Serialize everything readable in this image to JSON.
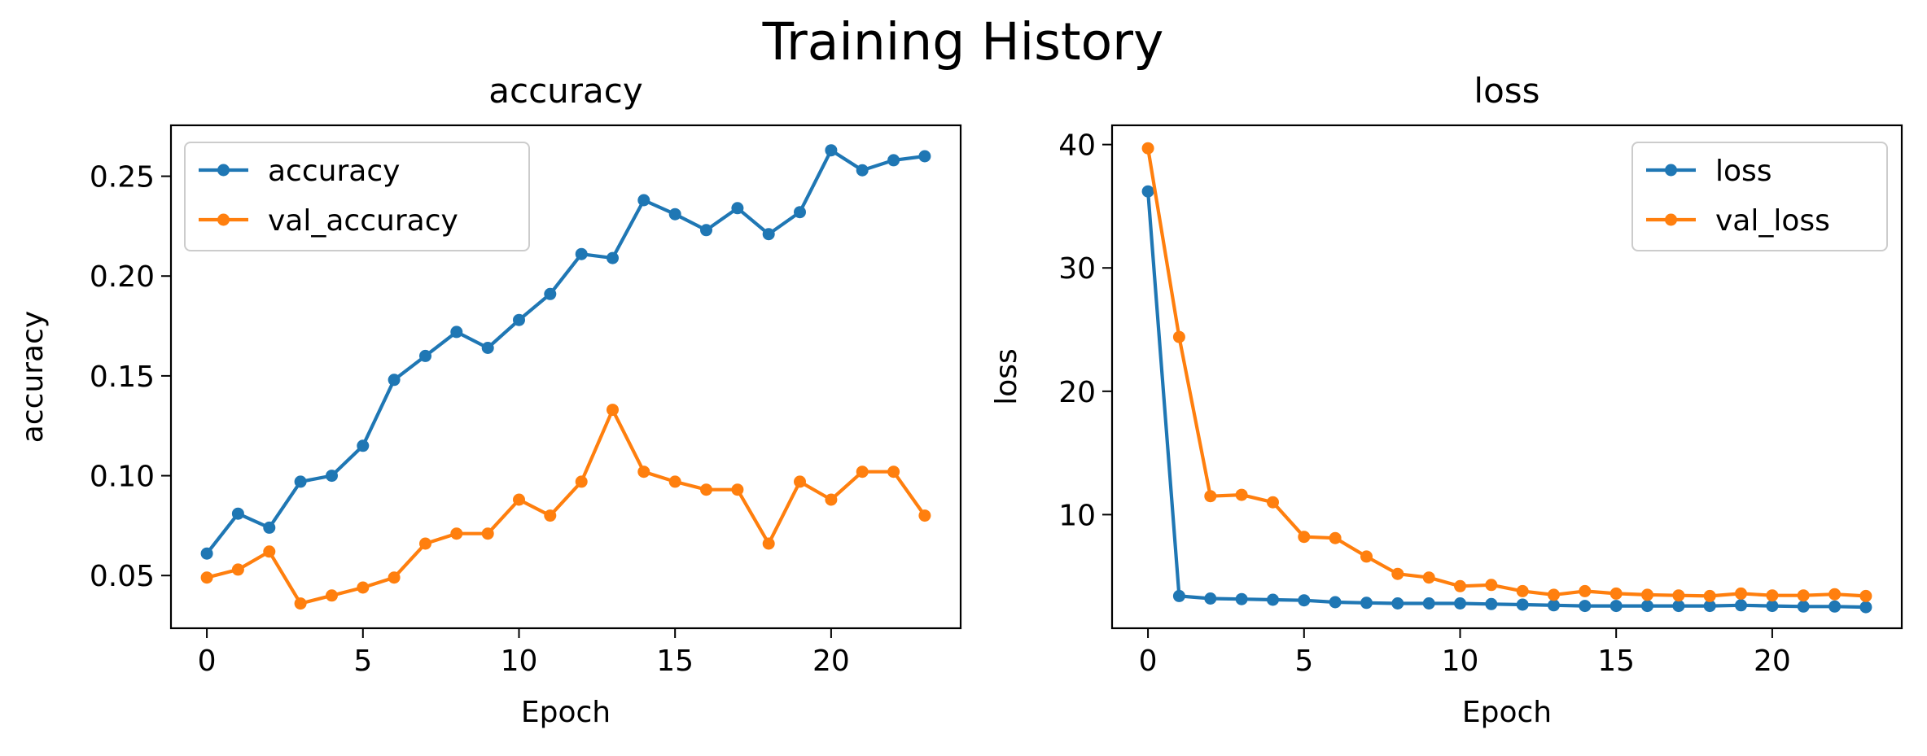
{
  "figure": {
    "suptitle": "Training History"
  },
  "colors": {
    "series1": "#1f77b4",
    "series2": "#ff7f0e",
    "axis": "#000000",
    "legend_border": "#cccccc"
  },
  "chart_data": [
    {
      "type": "line",
      "title": "accuracy",
      "xlabel": "Epoch",
      "ylabel": "accuracy",
      "xlim": [
        -1.15,
        24.15
      ],
      "ylim": [
        0.0236,
        0.2755
      ],
      "xticks": [
        0,
        5,
        10,
        15,
        20
      ],
      "yticks": [
        0.05,
        0.1,
        0.15,
        0.2,
        0.25
      ],
      "ytick_labels": [
        "0.05",
        "0.10",
        "0.15",
        "0.20",
        "0.25"
      ],
      "legend_position": "upper-left",
      "x": [
        0,
        1,
        2,
        3,
        4,
        5,
        6,
        7,
        8,
        9,
        10,
        11,
        12,
        13,
        14,
        15,
        16,
        17,
        18,
        19,
        20,
        21,
        22,
        23
      ],
      "series": [
        {
          "name": "accuracy",
          "color": "#1f77b4",
          "values": [
            0.061,
            0.081,
            0.074,
            0.097,
            0.1,
            0.115,
            0.148,
            0.16,
            0.172,
            0.164,
            0.178,
            0.191,
            0.211,
            0.209,
            0.238,
            0.231,
            0.223,
            0.234,
            0.221,
            0.232,
            0.263,
            0.253,
            0.258,
            0.26
          ]
        },
        {
          "name": "val_accuracy",
          "color": "#ff7f0e",
          "values": [
            0.049,
            0.053,
            0.062,
            0.036,
            0.04,
            0.044,
            0.049,
            0.066,
            0.071,
            0.071,
            0.088,
            0.08,
            0.097,
            0.133,
            0.102,
            0.097,
            0.093,
            0.093,
            0.066,
            0.097,
            0.088,
            0.102,
            0.102,
            0.08
          ]
        }
      ]
    },
    {
      "type": "line",
      "title": "loss",
      "xlabel": "Epoch",
      "ylabel": "loss",
      "xlim": [
        -1.15,
        24.15
      ],
      "ylim": [
        0.79,
        41.56
      ],
      "xticks": [
        0,
        5,
        10,
        15,
        20
      ],
      "yticks": [
        10,
        20,
        30,
        40
      ],
      "ytick_labels": [
        "10",
        "20",
        "30",
        "40"
      ],
      "legend_position": "upper-right",
      "x": [
        0,
        1,
        2,
        3,
        4,
        5,
        6,
        7,
        8,
        9,
        10,
        11,
        12,
        13,
        14,
        15,
        16,
        17,
        18,
        19,
        20,
        21,
        22,
        23
      ],
      "series": [
        {
          "name": "loss",
          "color": "#1f77b4",
          "values": [
            36.2,
            3.4,
            3.2,
            3.15,
            3.1,
            3.05,
            2.9,
            2.85,
            2.8,
            2.8,
            2.8,
            2.75,
            2.7,
            2.65,
            2.6,
            2.6,
            2.6,
            2.6,
            2.6,
            2.65,
            2.6,
            2.55,
            2.55,
            2.5
          ]
        },
        {
          "name": "val_loss",
          "color": "#ff7f0e",
          "values": [
            39.7,
            24.4,
            11.5,
            11.6,
            11.0,
            8.2,
            8.1,
            6.6,
            5.2,
            4.9,
            4.2,
            4.3,
            3.8,
            3.5,
            3.8,
            3.6,
            3.5,
            3.45,
            3.4,
            3.6,
            3.45,
            3.45,
            3.55,
            3.4
          ]
        }
      ]
    }
  ]
}
